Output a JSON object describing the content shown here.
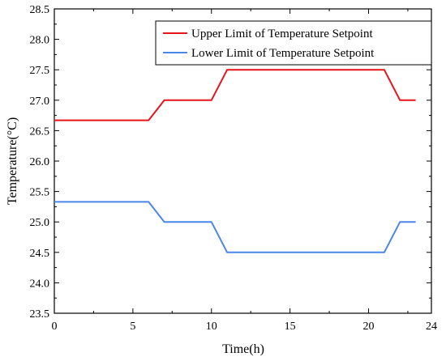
{
  "chart_data": {
    "type": "line",
    "xlabel": "Time(h)",
    "ylabel": "Temperature(°C)",
    "xlim": [
      0,
      24
    ],
    "ylim": [
      23.5,
      28.5
    ],
    "x_ticks": [
      "0",
      "5",
      "10",
      "15",
      "20",
      "24"
    ],
    "y_ticks": [
      "23.5",
      "24.0",
      "24.5",
      "25.0",
      "25.5",
      "26.0",
      "26.5",
      "27.0",
      "27.5",
      "28.0",
      "28.5"
    ],
    "grid": false,
    "legend_position": "top-right",
    "series": [
      {
        "name": "Upper Limit of Temperature Setpoint",
        "color": "#e8121b",
        "x": [
          0,
          6,
          7,
          10,
          11,
          21,
          22,
          23
        ],
        "y": [
          26.67,
          26.67,
          27.0,
          27.0,
          27.5,
          27.5,
          27.0,
          27.0
        ]
      },
      {
        "name": "Lower Limit of Temperature Setpoint",
        "color": "#4a86e8",
        "x": [
          0,
          6,
          7,
          10,
          11,
          21,
          22,
          23
        ],
        "y": [
          25.33,
          25.33,
          25.0,
          25.0,
          24.5,
          24.5,
          25.0,
          25.0
        ]
      }
    ]
  }
}
